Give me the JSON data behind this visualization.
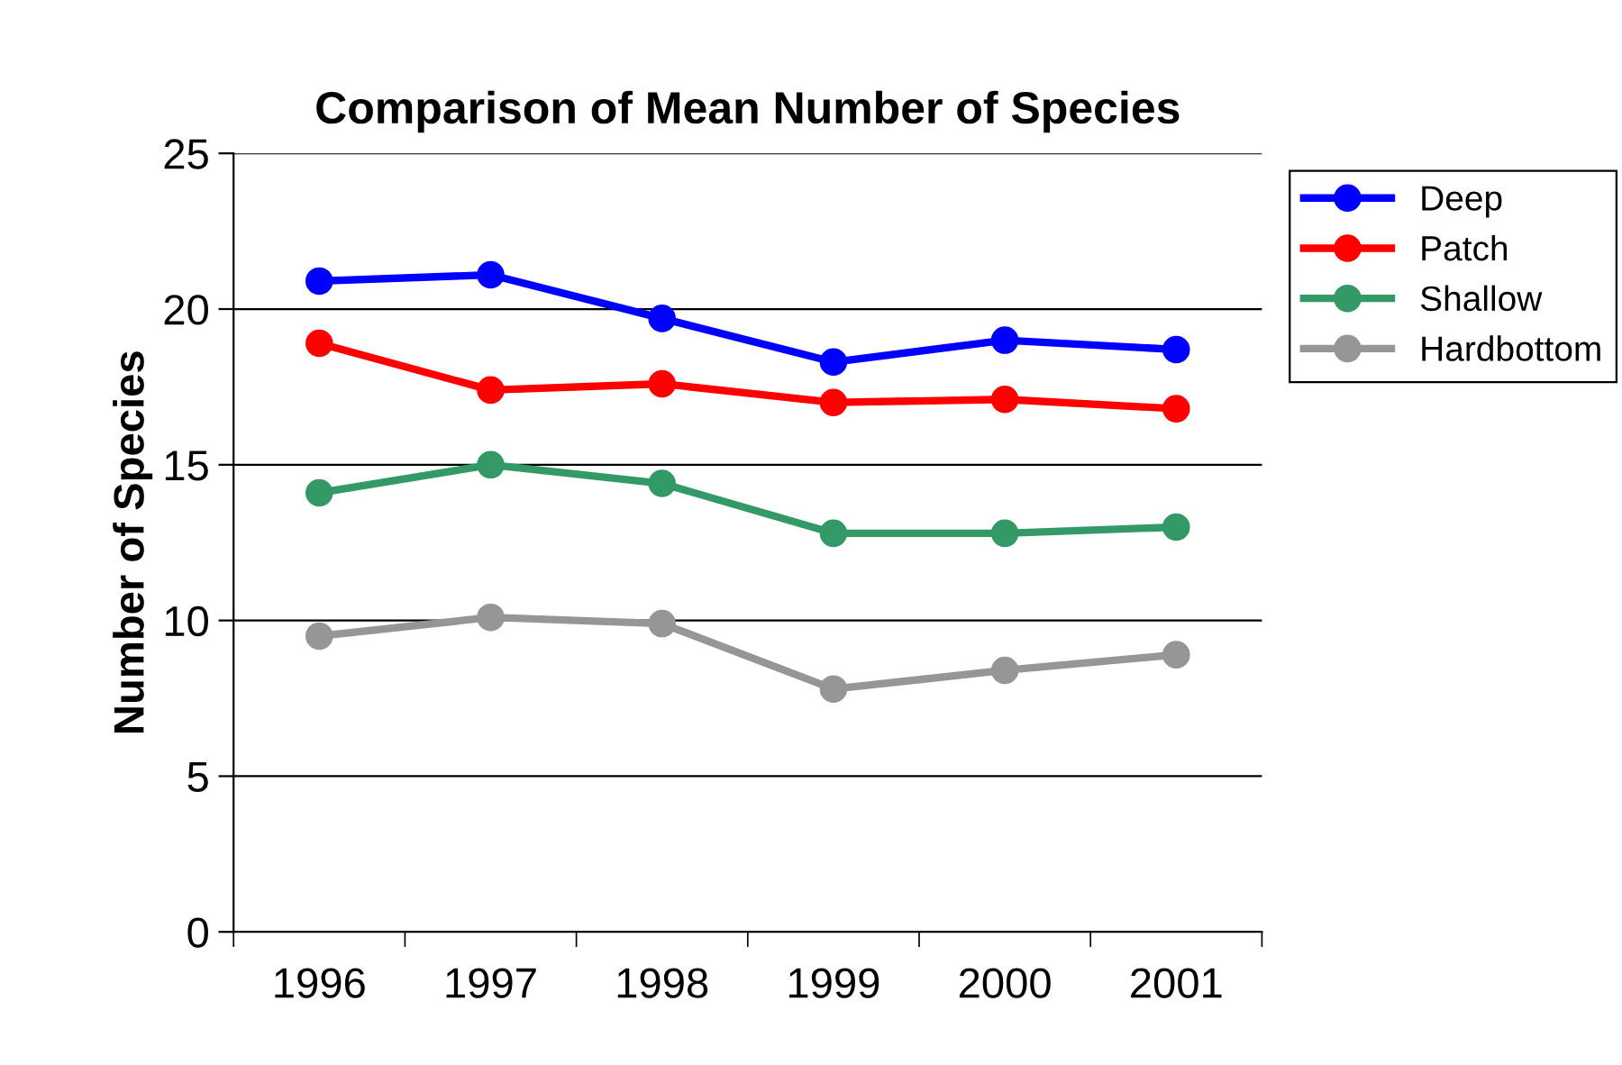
{
  "chart_data": {
    "type": "line",
    "title": "Comparison of Mean Number of Species",
    "ylabel": "Number of Species",
    "categories": [
      "1996",
      "1997",
      "1998",
      "1999",
      "2000",
      "2001"
    ],
    "series": [
      {
        "name": "Deep",
        "color": "#0000ff",
        "values": [
          20.9,
          21.1,
          19.7,
          18.3,
          19.0,
          18.7
        ]
      },
      {
        "name": "Patch",
        "color": "#ff0000",
        "values": [
          18.9,
          17.4,
          17.6,
          17.0,
          17.1,
          16.8
        ]
      },
      {
        "name": "Shallow",
        "color": "#339966",
        "values": [
          14.1,
          15.0,
          14.4,
          12.8,
          12.8,
          13.0
        ]
      },
      {
        "name": "Hardbottom",
        "color": "#969696",
        "values": [
          9.5,
          10.1,
          9.9,
          7.8,
          8.4,
          8.9
        ]
      }
    ],
    "ylim": [
      0,
      25
    ],
    "yticks": [
      0,
      5,
      10,
      15,
      20,
      25
    ],
    "grid": "y",
    "legend": "right",
    "marker": "circle",
    "line_style": "solid"
  }
}
